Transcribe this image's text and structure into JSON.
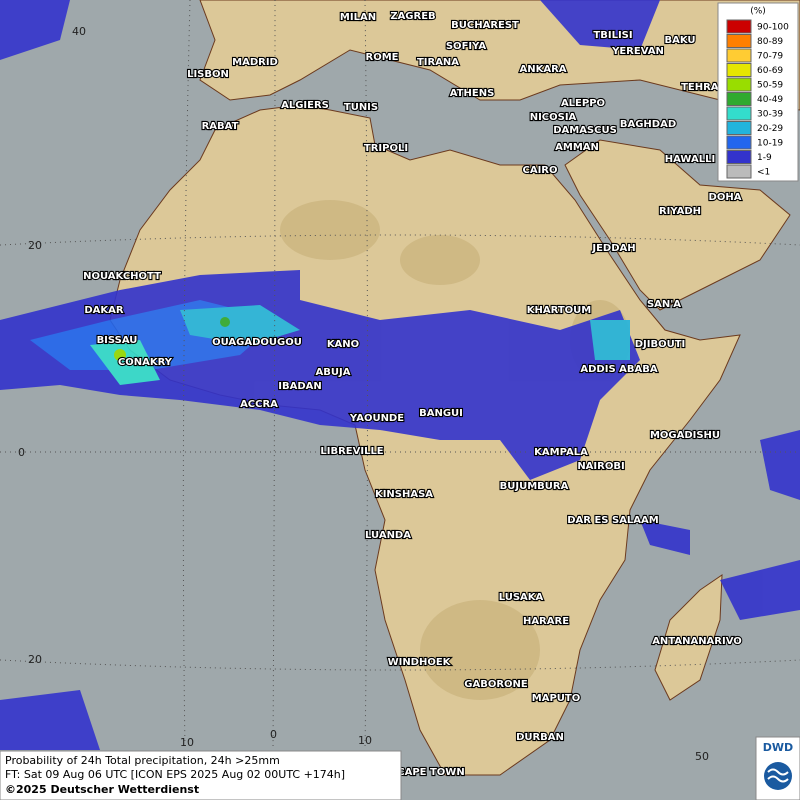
{
  "map": {
    "cities": [
      "MILAN",
      "ZAGREB",
      "BUCHAREST",
      "SOFIYA",
      "ROME",
      "TIRANA",
      "ATHENS",
      "ANKARA",
      "TBILISI",
      "BAKU",
      "YEREVAN",
      "TEHRAN",
      "LISBON",
      "MADRID",
      "ALGIERS",
      "TUNIS",
      "RABAT",
      "TRIPOLI",
      "NICOSIA",
      "ALEPPO",
      "DAMASCUS",
      "BAGHDAD",
      "AMMAN",
      "HAWALLI",
      "CAIRO",
      "DOHA",
      "RIYADH",
      "JEDDAH",
      "NOUAKCHOTT",
      "DAKAR",
      "KHARTOUM",
      "SAN'A",
      "BISSAU",
      "OUAGADOUGOU",
      "KANO",
      "DJIBOUTI",
      "CONAKRY",
      "ABUJA",
      "ADDIS ABABA",
      "IBADAN",
      "ACCRA",
      "YAOUNDE",
      "BANGUI",
      "MOGADISHU",
      "LIBREVILLE",
      "KAMPALA",
      "NAIROBI",
      "BUJUMBURA",
      "KINSHASA",
      "DAR ES SALAAM",
      "LUANDA",
      "LUSAKA",
      "HARARE",
      "ANTANANARIVO",
      "WINDHOEK",
      "GABORONE",
      "MAPUTO",
      "DURBAN",
      "CAPE TOWN"
    ],
    "grid_labels": [
      "40",
      "20",
      "0",
      "20",
      "10",
      "0",
      "10",
      "50"
    ]
  },
  "legend": {
    "title": "(%)",
    "entries": [
      {
        "label": "90-100",
        "color": "#cc0000"
      },
      {
        "label": "80-89",
        "color": "#ff7f00"
      },
      {
        "label": "70-79",
        "color": "#ffcc33"
      },
      {
        "label": "60-69",
        "color": "#e6e600"
      },
      {
        "label": "50-59",
        "color": "#99dd00"
      },
      {
        "label": "40-49",
        "color": "#2faa2f"
      },
      {
        "label": "30-39",
        "color": "#33ddcc"
      },
      {
        "label": "20-29",
        "color": "#22b4dd"
      },
      {
        "label": "10-19",
        "color": "#2266ee"
      },
      {
        "label": "1-9",
        "color": "#3333cc"
      },
      {
        "label": "<1",
        "color": "#bbbbbb"
      }
    ]
  },
  "caption": {
    "line1": "Probability of 24h Total precipitation, 24h >25mm",
    "line2": "FT: Sat 09 Aug 06 UTC [ICON EPS 2025 Aug 02 00UTC +174h]",
    "copyright": "©2025 Deutscher Wetterdienst"
  },
  "logo": "DWD"
}
